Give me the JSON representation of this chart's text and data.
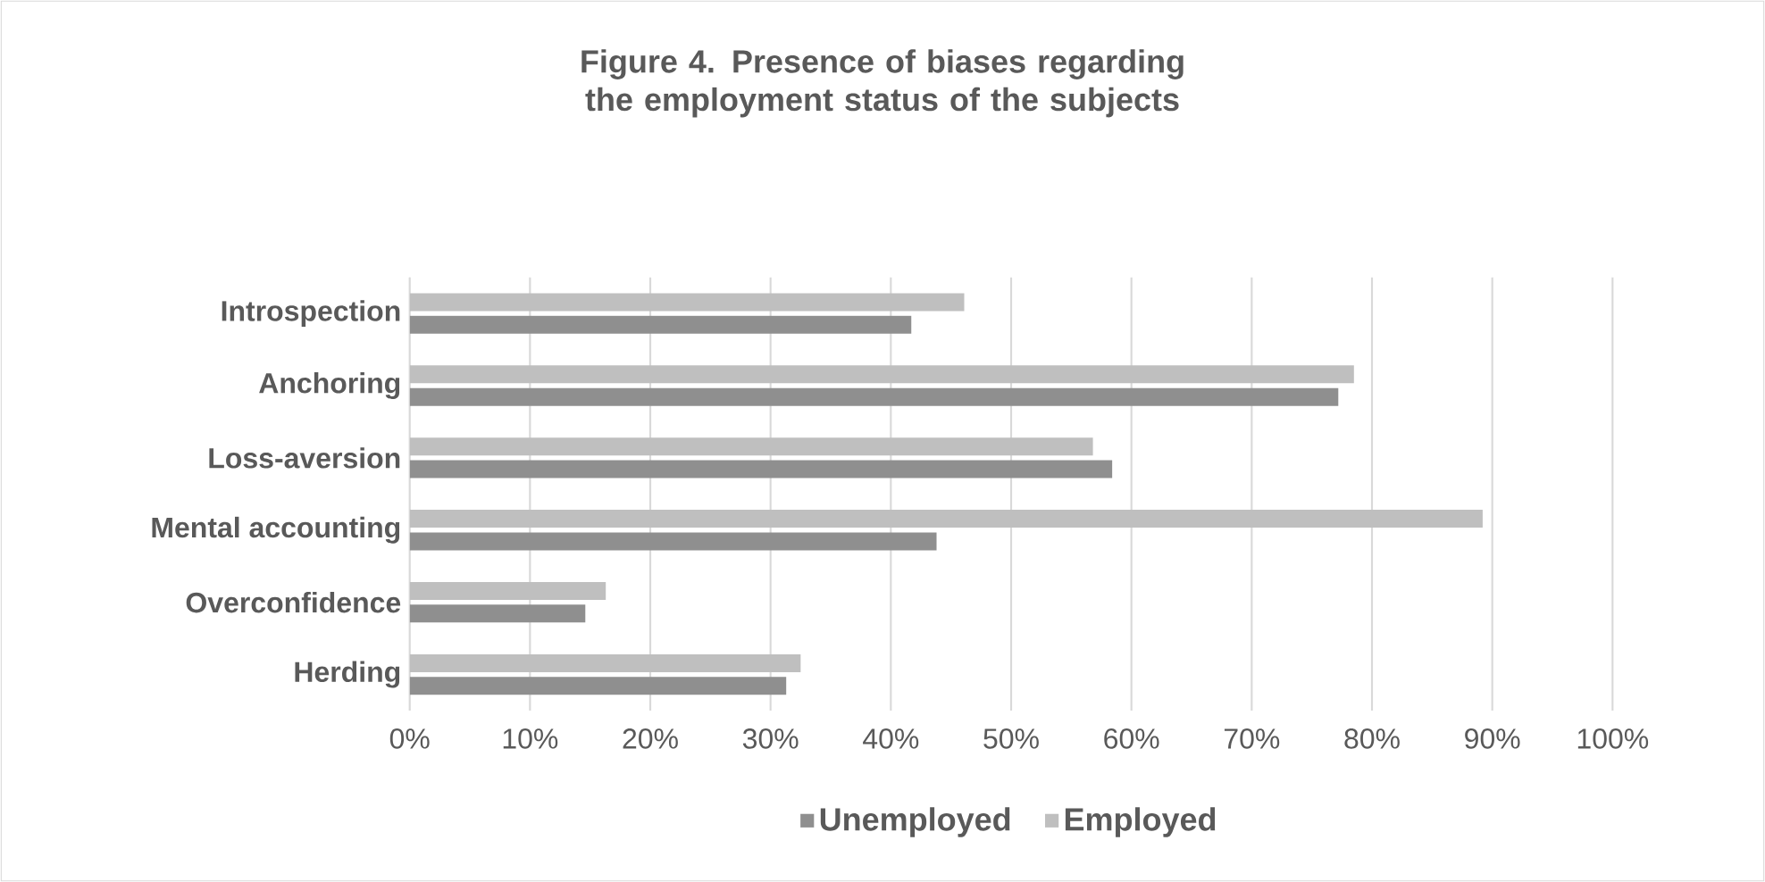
{
  "chart_data": {
    "type": "bar",
    "orientation": "horizontal",
    "title": "Figure 4. Presence of biases regarding the employment status of the subjects",
    "categories": [
      "Introspection",
      "Anchoring",
      "Loss-aversion",
      "Mental accounting",
      "Overconfidence",
      "Herding"
    ],
    "series": [
      {
        "name": "Unemployed",
        "color": "#8f8f8f",
        "values": [
          41.7,
          77.2,
          58.4,
          43.8,
          14.6,
          31.3
        ]
      },
      {
        "name": "Employed",
        "color": "#bfbfbf",
        "values": [
          46.1,
          78.5,
          56.8,
          89.2,
          16.3,
          32.5
        ]
      }
    ],
    "xlim": [
      0,
      100
    ],
    "xticks": [
      {
        "value": 0,
        "label": "0%"
      },
      {
        "value": 10,
        "label": "10%"
      },
      {
        "value": 20,
        "label": "20%"
      },
      {
        "value": 30,
        "label": "30%"
      },
      {
        "value": 40,
        "label": "40%"
      },
      {
        "value": 50,
        "label": "50%"
      },
      {
        "value": 60,
        "label": "60%"
      },
      {
        "value": 70,
        "label": "70%"
      },
      {
        "value": 80,
        "label": "80%"
      },
      {
        "value": 90,
        "label": "90%"
      },
      {
        "value": 100,
        "label": "100%"
      }
    ],
    "grid": "x",
    "legend": "bottom"
  }
}
